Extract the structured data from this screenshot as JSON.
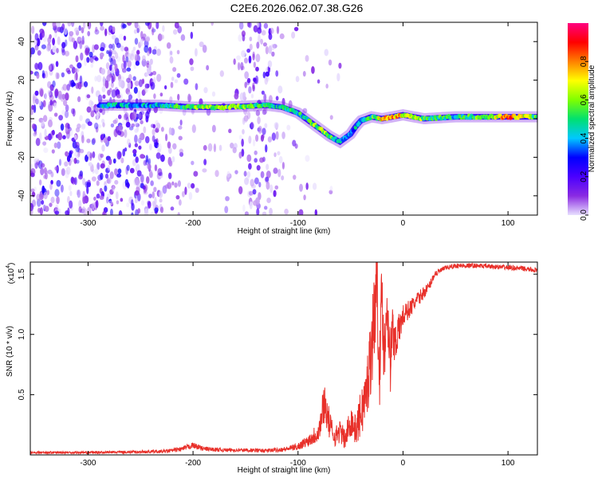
{
  "title": "C2E6.2026.062.07.38.G26",
  "chart_data": [
    {
      "type": "heatmap",
      "xlabel": "Height of straight line (km)",
      "ylabel": "Frequency (Hz)",
      "xlim": [
        -355,
        128
      ],
      "ylim": [
        -50,
        50
      ],
      "xticks": [
        "-300",
        "-200",
        "-100",
        "0",
        "100"
      ],
      "xtick_values": [
        -300,
        -200,
        -100,
        0,
        100
      ],
      "yticks": [
        "-40",
        "-20",
        "0",
        "20",
        "40"
      ],
      "ytick_values": [
        -40,
        -20,
        0,
        20,
        40
      ],
      "colorbar": {
        "label": "Normalized spectral amplitude",
        "ticks": [
          "0.0",
          "0.2",
          "0.4",
          "0.6",
          "0.8"
        ],
        "tick_values": [
          0.0,
          0.2,
          0.4,
          0.6,
          0.8
        ],
        "range": [
          0,
          1
        ],
        "colormap": [
          "#e8e0ff",
          "#8a2be2",
          "#4b00ff",
          "#0000ff",
          "#00c8ff",
          "#00e070",
          "#7fff00",
          "#ffff00",
          "#ff8000",
          "#ff0000",
          "#ff0080"
        ]
      },
      "ridge": {
        "x": [
          -290,
          -280,
          -270,
          -260,
          -230,
          -200,
          -170,
          -150,
          -130,
          -115,
          -100,
          -90,
          -80,
          -70,
          -60,
          -50,
          -45,
          -40,
          -30,
          -20,
          -10,
          0,
          20,
          50,
          80,
          100,
          128
        ],
        "frequency": [
          7,
          7,
          7,
          7,
          7,
          6,
          6,
          6.5,
          7,
          6,
          3,
          -1,
          -5,
          -9,
          -12,
          -8,
          -4,
          -1,
          1,
          0,
          1,
          2,
          0,
          1,
          1,
          1,
          1
        ],
        "amplitude": [
          0.3,
          0.45,
          0.4,
          0.35,
          0.45,
          0.55,
          0.6,
          0.55,
          0.5,
          0.45,
          0.45,
          0.5,
          0.6,
          0.55,
          0.4,
          0.35,
          0.4,
          0.45,
          0.5,
          0.7,
          0.75,
          0.7,
          0.55,
          0.45,
          0.55,
          0.85,
          0.5
        ]
      },
      "noise_regions": [
        {
          "x_range": [
            -355,
            -230
          ],
          "density": 1.0
        },
        {
          "x_range": [
            -230,
            -200
          ],
          "density": 0.35
        },
        {
          "x_range": [
            -155,
            -120
          ],
          "density": 0.6
        },
        {
          "x_range": [
            -200,
            -60
          ],
          "density": 0.12
        }
      ]
    },
    {
      "type": "line",
      "xlabel": "Height of straight line (km)",
      "ylabel": "SNR (10 * v/v)",
      "y_multiplier": "(x10",
      "y_multiplier_exp": "4",
      "y_multiplier_close": ")",
      "xlim": [
        -355,
        128
      ],
      "ylim": [
        0,
        1.6
      ],
      "xticks": [
        "-300",
        "-200",
        "-100",
        "0",
        "100"
      ],
      "xtick_values": [
        -300,
        -200,
        -100,
        0,
        100
      ],
      "yticks": [
        "0.5",
        "1.0",
        "1.5"
      ],
      "ytick_values": [
        0.5,
        1.0,
        1.5
      ],
      "series": [
        {
          "color": "#e8302a",
          "x": [
            -355,
            -300,
            -250,
            -225,
            -210,
            -200,
            -190,
            -170,
            -150,
            -130,
            -110,
            -100,
            -90,
            -80,
            -75,
            -70,
            -65,
            -60,
            -55,
            -50,
            -45,
            -40,
            -35,
            -30,
            -27,
            -25,
            -22,
            -20,
            -18,
            -15,
            -12,
            -10,
            -8,
            -5,
            -2,
            0,
            5,
            10,
            15,
            20,
            25,
            30,
            40,
            50,
            70,
            90,
            110,
            128
          ],
          "y": [
            0.02,
            0.02,
            0.025,
            0.03,
            0.05,
            0.08,
            0.05,
            0.04,
            0.04,
            0.035,
            0.05,
            0.07,
            0.12,
            0.2,
            0.45,
            0.25,
            0.15,
            0.2,
            0.12,
            0.3,
            0.2,
            0.35,
            0.5,
            0.9,
            1.2,
            1.5,
            0.7,
            1.4,
            0.8,
            1.3,
            0.75,
            1.05,
            0.95,
            1.0,
            1.1,
            1.15,
            1.2,
            1.25,
            1.3,
            1.35,
            1.4,
            1.5,
            1.55,
            1.57,
            1.57,
            1.56,
            1.55,
            1.53
          ],
          "fluctuation": [
            0.01,
            0.01,
            0.012,
            0.015,
            0.02,
            0.025,
            0.02,
            0.015,
            0.015,
            0.015,
            0.02,
            0.03,
            0.05,
            0.1,
            0.18,
            0.12,
            0.08,
            0.1,
            0.08,
            0.15,
            0.12,
            0.2,
            0.25,
            0.35,
            0.4,
            0.4,
            0.35,
            0.35,
            0.3,
            0.3,
            0.25,
            0.2,
            0.2,
            0.15,
            0.12,
            0.1,
            0.08,
            0.07,
            0.06,
            0.05,
            0.04,
            0.03,
            0.02,
            0.02,
            0.02,
            0.02,
            0.02,
            0.02
          ]
        }
      ]
    }
  ]
}
